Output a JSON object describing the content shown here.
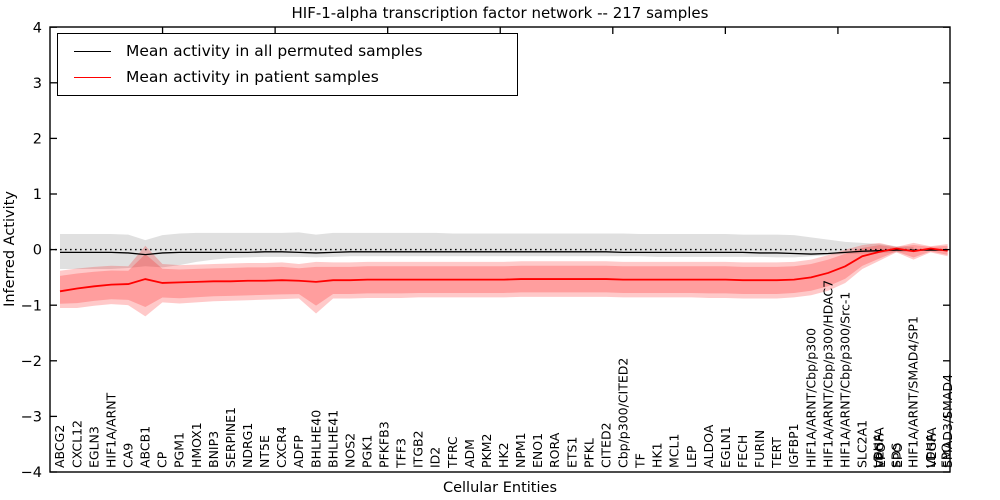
{
  "chart_data": {
    "type": "line",
    "title": "HIF-1-alpha transcription factor network -- 217 samples",
    "xlabel": "Cellular Entities",
    "ylabel": "Inferred Activity",
    "ylim": [
      -4,
      4
    ],
    "ytick_labels": [
      "4",
      "3",
      "2",
      "1",
      "0",
      "−1",
      "−2",
      "−3",
      "−4"
    ],
    "ytick_values": [
      4,
      3,
      2,
      1,
      0,
      -1,
      -2,
      -3,
      -4
    ],
    "grid": false,
    "zero_line_style": "dotted",
    "legend_position": "upper left",
    "x_tick_label_rotation": 90,
    "categories": [
      "ABCG2",
      "CXCL12",
      "EGLN3",
      "HIF1A/ARNT",
      "CA9",
      "ABCB1",
      "CP",
      "PGM1",
      "HMOX1",
      "BNIP3",
      "SERPINE1",
      "NDRG1",
      "NT5E",
      "CXCR4",
      "ADFP",
      "BHLHE40",
      "BHLHE41",
      "NOS2",
      "PGK1",
      "PFKFB3",
      "TFF3",
      "ITGB2",
      "ID2",
      "TFRC",
      "ADM",
      "PKM2",
      "HK2",
      "NPM1",
      "ENO1",
      "RORA",
      "ETS1",
      "PFKL",
      "CITED2",
      "Cbp/p300/CITED2",
      "TF",
      "HK1",
      "MCL1",
      "LEP",
      "ALDOA",
      "EGLN1",
      "FECH",
      "FURIN",
      "TERT",
      "IGFBP1",
      "HIF1A/ARNT/Cbp/p300",
      "HIF1A/ARNT/Cbp/p300/HDAC7",
      "HIF1A/ARNT/Cbp/p300/Src-1",
      "SLC2A1",
      "VEGFA",
      "SDS",
      "HIF1A/ARNT/SMAD4/SP1",
      "LDHA",
      "SMAD3/SMAD4"
    ],
    "overlap_fill_labels": [
      {
        "index": 48,
        "text": "EPO",
        "dx": 1.3
      },
      {
        "index": 48,
        "text": "LDHA",
        "dx": -1.3
      },
      {
        "index": 49,
        "text": "EPO",
        "dx": 1.2
      },
      {
        "index": 51,
        "text": "VEGFA",
        "dx": 1.3
      },
      {
        "index": 52,
        "text": "EPO",
        "dx": -1.3
      }
    ],
    "series": [
      {
        "name": "Mean activity in all permuted samples",
        "color": "#000000",
        "values": [
          -0.05,
          -0.05,
          -0.05,
          -0.05,
          -0.06,
          -0.09,
          -0.06,
          -0.05,
          -0.05,
          -0.05,
          -0.05,
          -0.05,
          -0.04,
          -0.04,
          -0.05,
          -0.06,
          -0.05,
          -0.04,
          -0.04,
          -0.04,
          -0.04,
          -0.04,
          -0.04,
          -0.04,
          -0.04,
          -0.04,
          -0.04,
          -0.04,
          -0.04,
          -0.04,
          -0.04,
          -0.04,
          -0.04,
          -0.05,
          -0.05,
          -0.05,
          -0.05,
          -0.05,
          -0.05,
          -0.05,
          -0.05,
          -0.06,
          -0.06,
          -0.07,
          -0.08,
          -0.07,
          -0.05,
          -0.03,
          -0.02,
          -0.01,
          -0.01,
          -0.01,
          -0.01
        ]
      },
      {
        "name": "Mean activity in patient samples",
        "color": "#ff0000",
        "values": [
          -0.75,
          -0.7,
          -0.66,
          -0.63,
          -0.62,
          -0.53,
          -0.6,
          -0.59,
          -0.58,
          -0.57,
          -0.57,
          -0.56,
          -0.56,
          -0.55,
          -0.56,
          -0.58,
          -0.55,
          -0.55,
          -0.54,
          -0.54,
          -0.54,
          -0.54,
          -0.54,
          -0.54,
          -0.54,
          -0.54,
          -0.54,
          -0.53,
          -0.53,
          -0.53,
          -0.53,
          -0.53,
          -0.53,
          -0.54,
          -0.54,
          -0.54,
          -0.54,
          -0.54,
          -0.54,
          -0.54,
          -0.55,
          -0.55,
          -0.55,
          -0.54,
          -0.5,
          -0.42,
          -0.3,
          -0.12,
          -0.04,
          0.02,
          -0.03,
          0.02,
          -0.02
        ]
      }
    ],
    "bands": [
      {
        "name": "permuted-range",
        "series": "Mean activity in all permuted samples",
        "end_index": 50,
        "upper": [
          0.28,
          0.28,
          0.28,
          0.28,
          0.27,
          0.17,
          0.26,
          0.29,
          0.3,
          0.3,
          0.3,
          0.3,
          0.3,
          0.3,
          0.31,
          0.27,
          0.3,
          0.3,
          0.3,
          0.3,
          0.3,
          0.3,
          0.3,
          0.29,
          0.29,
          0.29,
          0.29,
          0.29,
          0.29,
          0.29,
          0.29,
          0.29,
          0.29,
          0.29,
          0.28,
          0.28,
          0.28,
          0.28,
          0.28,
          0.28,
          0.27,
          0.27,
          0.27,
          0.26,
          0.22,
          0.18,
          0.14,
          0.12,
          0.1,
          0.06,
          0.05,
          0.04,
          0.04
        ],
        "lower": [
          -0.35,
          -0.35,
          -0.35,
          -0.35,
          -0.33,
          -0.3,
          -0.32,
          -0.28,
          -0.22,
          -0.18,
          -0.15,
          -0.14,
          -0.13,
          -0.13,
          -0.13,
          -0.14,
          -0.13,
          -0.12,
          -0.12,
          -0.12,
          -0.12,
          -0.12,
          -0.12,
          -0.12,
          -0.12,
          -0.12,
          -0.12,
          -0.12,
          -0.12,
          -0.12,
          -0.12,
          -0.12,
          -0.12,
          -0.12,
          -0.12,
          -0.13,
          -0.13,
          -0.13,
          -0.13,
          -0.13,
          -0.13,
          -0.13,
          -0.14,
          -0.14,
          -0.12,
          -0.1,
          -0.08,
          -0.07,
          -0.06,
          -0.05,
          -0.04,
          -0.04,
          -0.04
        ]
      },
      {
        "name": "patient-range",
        "series": "Mean activity in patient samples",
        "end_index": 52,
        "upper": [
          -0.38,
          -0.34,
          -0.31,
          -0.29,
          -0.3,
          0.07,
          -0.26,
          -0.28,
          -0.27,
          -0.26,
          -0.25,
          -0.24,
          -0.24,
          -0.23,
          -0.26,
          -0.22,
          -0.23,
          -0.23,
          -0.22,
          -0.22,
          -0.22,
          -0.22,
          -0.22,
          -0.22,
          -0.22,
          -0.22,
          -0.22,
          -0.21,
          -0.21,
          -0.21,
          -0.21,
          -0.21,
          -0.21,
          -0.22,
          -0.22,
          -0.22,
          -0.22,
          -0.22,
          -0.22,
          -0.22,
          -0.23,
          -0.23,
          -0.23,
          -0.22,
          -0.18,
          -0.1,
          0.0,
          0.08,
          0.12,
          0.05,
          0.12,
          0.06,
          0.1
        ],
        "lower": [
          -1.05,
          -1.05,
          -1.01,
          -0.98,
          -1.0,
          -1.2,
          -0.95,
          -0.97,
          -0.95,
          -0.93,
          -0.92,
          -0.91,
          -0.9,
          -0.89,
          -0.88,
          -1.15,
          -0.88,
          -0.88,
          -0.87,
          -0.87,
          -0.87,
          -0.86,
          -0.86,
          -0.86,
          -0.86,
          -0.86,
          -0.86,
          -0.85,
          -0.85,
          -0.85,
          -0.85,
          -0.85,
          -0.85,
          -0.86,
          -0.86,
          -0.86,
          -0.86,
          -0.86,
          -0.87,
          -0.87,
          -0.88,
          -0.88,
          -0.88,
          -0.86,
          -0.82,
          -0.74,
          -0.6,
          -0.35,
          -0.2,
          -0.05,
          -0.18,
          -0.05,
          -0.12
        ]
      }
    ],
    "colors": {
      "permuted_line": "#000000",
      "patient_line": "#ff0000",
      "permuted_band": "rgba(0,0,0,0.12)",
      "patient_band": "rgba(255,0,0,0.21)",
      "frame": "#000000"
    }
  },
  "legend": {
    "items": [
      {
        "label": "Mean activity in all permuted samples",
        "color": "#000000"
      },
      {
        "label": "Mean activity in patient samples",
        "color": "#ff0000"
      }
    ]
  }
}
